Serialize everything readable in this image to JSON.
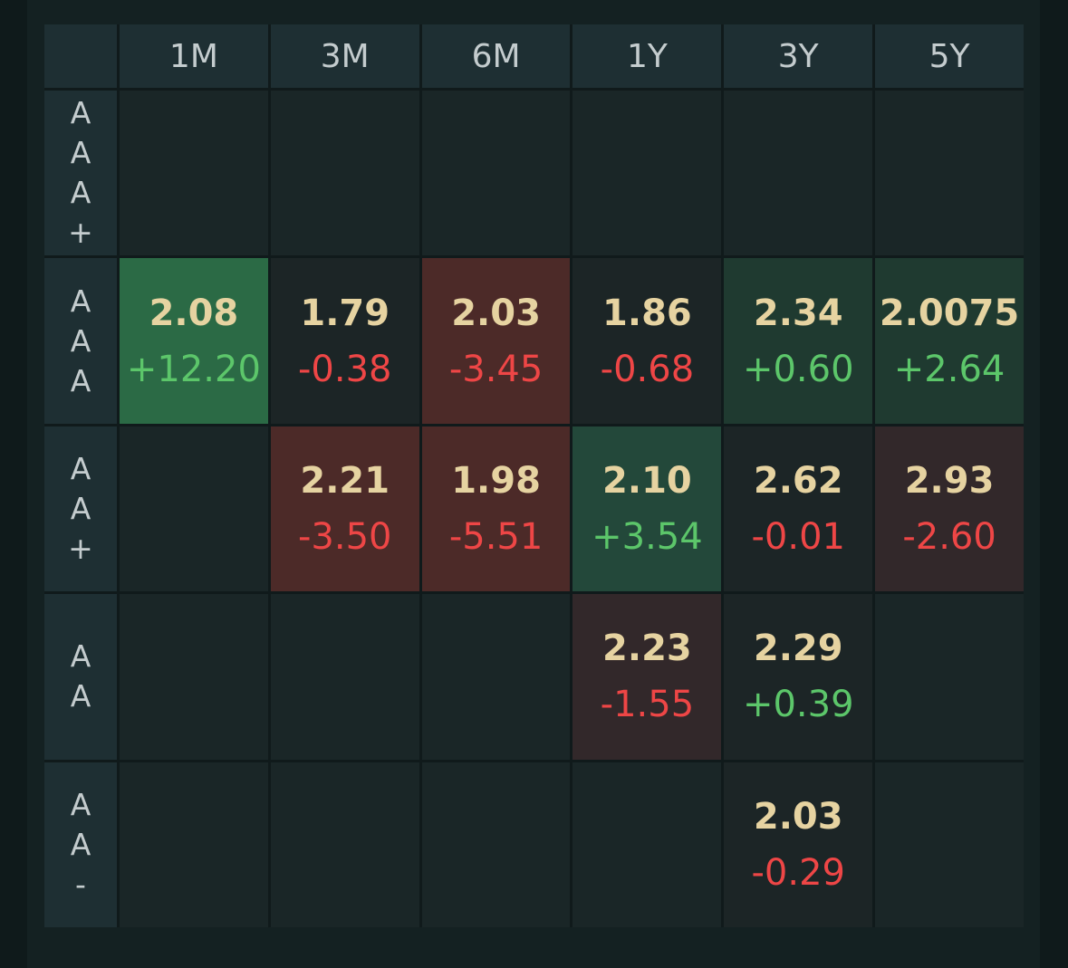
{
  "columns": [
    "1M",
    "3M",
    "6M",
    "1Y",
    "3Y",
    "5Y"
  ],
  "rows": [
    {
      "label": [
        "A",
        "A",
        "A",
        "+"
      ],
      "cells": [
        null,
        null,
        null,
        null,
        null,
        null
      ]
    },
    {
      "label": [
        "A",
        "A",
        "A"
      ],
      "cells": [
        {
          "rate": "2.08",
          "change": "+12.20",
          "tone": "strong-green",
          "dir": "pos"
        },
        {
          "rate": "1.79",
          "change": "-0.38",
          "tone": "neutral",
          "dir": "neg"
        },
        {
          "rate": "2.03",
          "change": "-3.45",
          "tone": "red",
          "dir": "neg"
        },
        {
          "rate": "1.86",
          "change": "-0.68",
          "tone": "neutral",
          "dir": "neg"
        },
        {
          "rate": "2.34",
          "change": "+0.60",
          "tone": "mid-green",
          "dir": "pos"
        },
        {
          "rate": "2.0075",
          "change": "+2.64",
          "tone": "mid-green",
          "dir": "pos"
        }
      ]
    },
    {
      "label": [
        "A",
        "A",
        "+"
      ],
      "cells": [
        null,
        {
          "rate": "2.21",
          "change": "-3.50",
          "tone": "red",
          "dir": "neg"
        },
        {
          "rate": "1.98",
          "change": "-5.51",
          "tone": "red",
          "dir": "neg"
        },
        {
          "rate": "2.10",
          "change": "+3.54",
          "tone": "green",
          "dir": "pos"
        },
        {
          "rate": "2.62",
          "change": "-0.01",
          "tone": "neutral",
          "dir": "neg"
        },
        {
          "rate": "2.93",
          "change": "-2.60",
          "tone": "light-red",
          "dir": "neg"
        }
      ]
    },
    {
      "label": [
        "A",
        "A"
      ],
      "cells": [
        null,
        null,
        null,
        {
          "rate": "2.23",
          "change": "-1.55",
          "tone": "light-red",
          "dir": "neg"
        },
        {
          "rate": "2.29",
          "change": "+0.39",
          "tone": "neutral",
          "dir": "pos"
        },
        null
      ]
    },
    {
      "label": [
        "A",
        "A",
        "-"
      ],
      "cells": [
        null,
        null,
        null,
        null,
        {
          "rate": "2.03",
          "change": "-0.29",
          "tone": "neutral",
          "dir": "neg"
        },
        null
      ]
    }
  ]
}
